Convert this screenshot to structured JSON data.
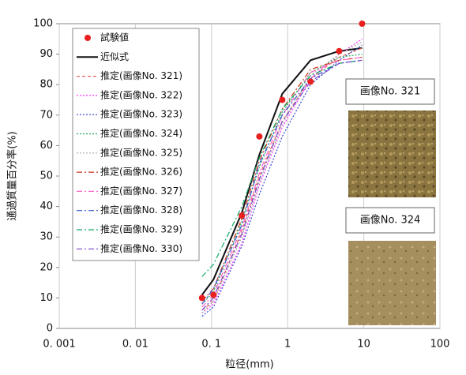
{
  "chart_data": {
    "type": "line",
    "y_label": "通過質量百分率(%)",
    "x_label": "粒径(mm)",
    "log_x": true,
    "grid": "x",
    "xlim": [
      0.001,
      100
    ],
    "xticks": [
      {
        "value": 0.001,
        "label": "0. 001"
      },
      {
        "value": 0.01,
        "label": "0. 01"
      },
      {
        "value": 0.1,
        "label": "0. 1"
      },
      1,
      10,
      100
    ],
    "ylim": [
      0,
      100
    ],
    "yticks": [
      0,
      10,
      20,
      30,
      40,
      50,
      60,
      70,
      80,
      90,
      100
    ],
    "legend": "upper left",
    "annotations": [
      "画像No. 321",
      "画像No. 324"
    ],
    "x": [
      0.075,
      0.106,
      0.25,
      0.425,
      0.85,
      2,
      4.75,
      9.5
    ],
    "series": [
      {
        "name": "試験値",
        "color": "#e8201e",
        "style": "marker",
        "values": [
          10,
          11,
          37,
          63,
          75,
          81,
          91,
          100
        ]
      },
      {
        "name": "近似式",
        "color": "#111111",
        "style": "solid",
        "values": [
          11,
          16,
          38,
          57,
          77,
          88,
          91,
          92
        ]
      },
      {
        "name": "推定(画像No. 321)",
        "color": "#e8665a",
        "style": "dashed",
        "values": [
          6,
          9,
          32,
          50,
          68,
          82,
          89,
          92
        ]
      },
      {
        "name": "推定(画像No. 322)",
        "color": "#ff33ff",
        "style": "dotted",
        "values": [
          5,
          8,
          28,
          47,
          66,
          82,
          90,
          95
        ]
      },
      {
        "name": "推定(画像No. 323)",
        "color": "#3344cc",
        "style": "dotted",
        "values": [
          4,
          7,
          27,
          44,
          63,
          80,
          88,
          93
        ]
      },
      {
        "name": "推定(画像No. 324)",
        "color": "#22aa55",
        "style": "dotted",
        "values": [
          8,
          12,
          35,
          53,
          71,
          84,
          89,
          90
        ]
      },
      {
        "name": "推定(画像No. 325)",
        "color": "#aaaaaa",
        "style": "dotted",
        "values": [
          5,
          9,
          30,
          48,
          67,
          83,
          90,
          94
        ]
      },
      {
        "name": "推定(画像No. 326)",
        "color": "#cc3322",
        "style": "dashdot",
        "values": [
          9,
          13,
          36,
          55,
          72,
          85,
          88,
          89
        ]
      },
      {
        "name": "推定(画像No. 327)",
        "color": "#ff66cc",
        "style": "dashdot",
        "values": [
          7,
          11,
          33,
          51,
          70,
          84,
          88,
          89
        ]
      },
      {
        "name": "推定(画像No. 328)",
        "color": "#3355cc",
        "style": "dashdot",
        "values": [
          8,
          13,
          34,
          54,
          70,
          82,
          87,
          88
        ]
      },
      {
        "name": "推定(画像No. 329)",
        "color": "#11aa66",
        "style": "dashdot",
        "values": [
          17,
          21,
          40,
          56,
          72,
          83,
          87,
          88
        ]
      },
      {
        "name": "推定(画像No. 330)",
        "color": "#7744cc",
        "style": "dashdot",
        "values": [
          6,
          10,
          31,
          49,
          68,
          81,
          87,
          88
        ]
      }
    ]
  }
}
